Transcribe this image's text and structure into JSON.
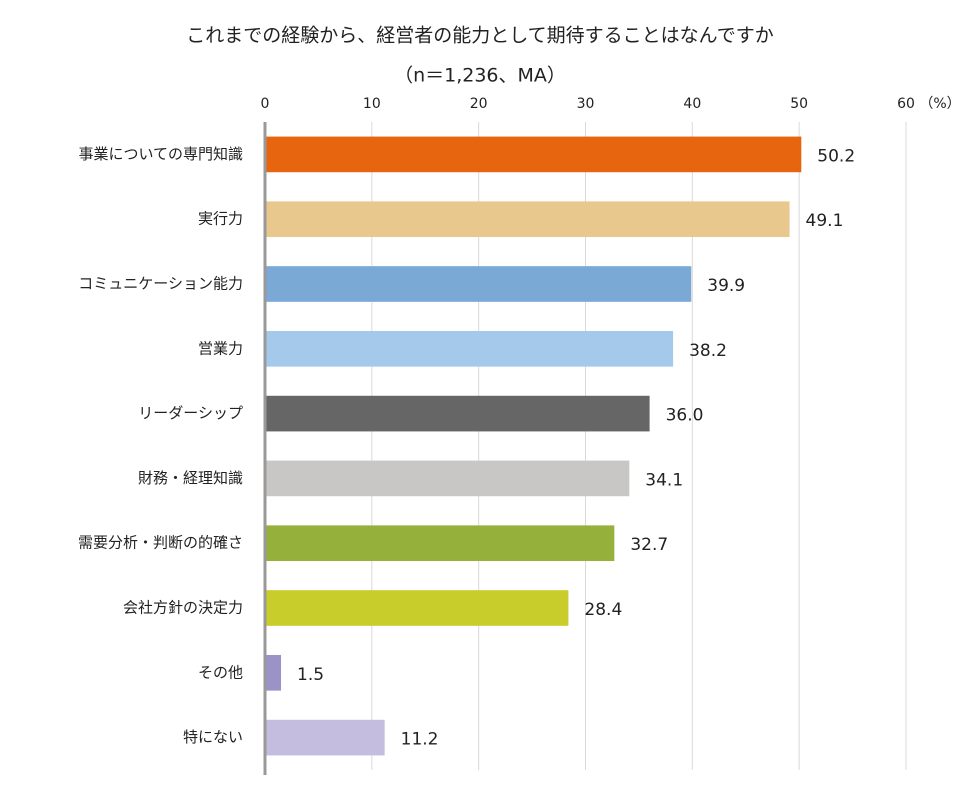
{
  "chart_data": {
    "type": "bar",
    "orientation": "horizontal",
    "title": "これまでの経験から、経営者の能力として期待することはなんですか",
    "subtitle": "（n＝1,236、MA）",
    "x_label": "（%）",
    "categories": [
      "事業についての専門知識",
      "実行力",
      "コミュニケーション能力",
      "営業力",
      "リーダーシップ",
      "財務・経理知識",
      "需要分析・判断の的確さ",
      "会社方針の決定力",
      "その他",
      "特にない"
    ],
    "values": [
      50.2,
      49.1,
      39.9,
      38.2,
      36.0,
      34.1,
      32.7,
      28.4,
      1.5,
      11.2
    ],
    "value_labels": [
      "50.2",
      "49.1",
      "39.9",
      "38.2",
      "36.0",
      "34.1",
      "32.7",
      "28.4",
      "1.5",
      "11.2"
    ],
    "colors": [
      "#e8650f",
      "#e8c88c",
      "#7aa9d6",
      "#a5c9ea",
      "#666666",
      "#c8c7c5",
      "#96b03c",
      "#c8cd2c",
      "#9b93c7",
      "#c5bde0"
    ],
    "xlim": [
      0,
      60
    ],
    "xticks": [
      0,
      10,
      20,
      30,
      40,
      50,
      60
    ],
    "grid": true
  }
}
